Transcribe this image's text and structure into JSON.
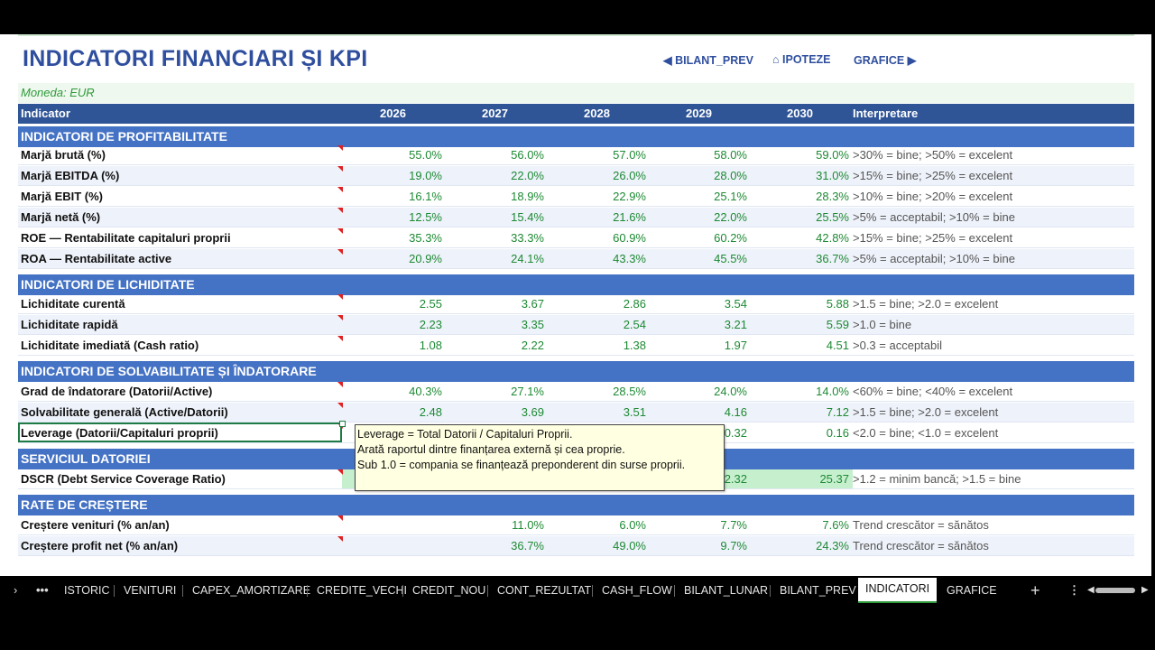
{
  "title": "INDICATORI FINANCIARI ȘI KPI",
  "nav": {
    "bilant_prev": "◀ BILANT_PREV",
    "ipoteze": "⌂ IPOTEZE",
    "grafice": "GRAFICE ▶"
  },
  "moneda": "Moneda: EUR",
  "header": {
    "indicator": "Indicator",
    "years": [
      "2026",
      "2027",
      "2028",
      "2029",
      "2030"
    ],
    "interpretare": "Interpretare"
  },
  "sections": {
    "profitabilitate": {
      "title": "INDICATORI DE PROFITABILITATE",
      "rows": [
        {
          "label": "Marjă brută (%)",
          "values": [
            "55.0%",
            "56.0%",
            "57.0%",
            "58.0%",
            "59.0%"
          ],
          "interp": ">30% = bine; >50% = excelent"
        },
        {
          "label": "Marjă EBITDA (%)",
          "values": [
            "19.0%",
            "22.0%",
            "26.0%",
            "28.0%",
            "31.0%"
          ],
          "interp": ">15% = bine; >25% = excelent"
        },
        {
          "label": "Marjă EBIT (%)",
          "values": [
            "16.1%",
            "18.9%",
            "22.9%",
            "25.1%",
            "28.3%"
          ],
          "interp": ">10% = bine; >20% = excelent"
        },
        {
          "label": "Marjă netă (%)",
          "values": [
            "12.5%",
            "15.4%",
            "21.6%",
            "22.0%",
            "25.5%"
          ],
          "interp": ">5% = acceptabil; >10% = bine"
        },
        {
          "label": "ROE — Rentabilitate capitaluri proprii",
          "values": [
            "35.3%",
            "33.3%",
            "60.9%",
            "60.2%",
            "42.8%"
          ],
          "interp": ">15% = bine; >25% = excelent"
        },
        {
          "label": "ROA — Rentabilitate active",
          "values": [
            "20.9%",
            "24.1%",
            "43.3%",
            "45.5%",
            "36.7%"
          ],
          "interp": ">5% = acceptabil; >10% = bine"
        }
      ]
    },
    "lichiditate": {
      "title": "INDICATORI DE LICHIDITATE",
      "rows": [
        {
          "label": "Lichiditate curentă",
          "values": [
            "2.55",
            "3.67",
            "2.86",
            "3.54",
            "5.88"
          ],
          "interp": ">1.5 = bine; >2.0 = excelent"
        },
        {
          "label": "Lichiditate rapidă",
          "values": [
            "2.23",
            "3.35",
            "2.54",
            "3.21",
            "5.59"
          ],
          "interp": ">1.0 = bine"
        },
        {
          "label": "Lichiditate imediată (Cash ratio)",
          "values": [
            "1.08",
            "2.22",
            "1.38",
            "1.97",
            "4.51"
          ],
          "interp": ">0.3 = acceptabil"
        }
      ]
    },
    "solvabilitate": {
      "title": "INDICATORI DE SOLVABILITATE ȘI ÎNDATORARE",
      "rows": [
        {
          "label": "Grad de îndatorare (Datorii/Active)",
          "values": [
            "40.3%",
            "27.1%",
            "28.5%",
            "24.0%",
            "14.0%"
          ],
          "interp": "<60% = bine; <40% = excelent"
        },
        {
          "label": "Solvabilitate generală (Active/Datorii)",
          "values": [
            "2.48",
            "3.69",
            "3.51",
            "4.16",
            "7.12"
          ],
          "interp": ">1.5 = bine; >2.0 = excelent"
        },
        {
          "label": "Leverage (Datorii/Capitaluri proprii)",
          "values": [
            "",
            "",
            "",
            "0.32",
            "0.16"
          ],
          "interp": "<2.0 = bine; <1.0 = excelent"
        }
      ]
    },
    "serviciu": {
      "title": "SERVICIUL DATORIEI",
      "rows": [
        {
          "label": "DSCR (Debt Service Coverage Ratio)",
          "values": [
            "",
            "",
            "",
            "2.32",
            "25.37"
          ],
          "interp": ">1.2 = minim bancă; >1.5 = bine"
        }
      ]
    },
    "crestere": {
      "title": "RATE DE CREȘTERE",
      "rows": [
        {
          "label": "Creștere venituri (% an/an)",
          "values": [
            "",
            "11.0%",
            "6.0%",
            "7.7%",
            "7.6%"
          ],
          "interp": "Trend crescător = sănătos"
        },
        {
          "label": "Creștere profit net (% an/an)",
          "values": [
            "",
            "36.7%",
            "49.0%",
            "9.7%",
            "24.3%"
          ],
          "interp": "Trend crescător = sănătos"
        }
      ]
    }
  },
  "tooltip": {
    "line1": "Leverage = Total Datorii / Capitaluri Proprii.",
    "line2": "Arată raportul dintre finanțarea externă și cea proprie.",
    "line3": "Sub 1.0 = compania se finanțează preponderent din surse proprii."
  },
  "tabs": [
    "ISTORIC",
    "VENITURI",
    "CAPEX_AMORTIZARE",
    "CREDITE_VECHI",
    "CREDIT_NOU",
    "CONT_REZULTAT",
    "CASH_FLOW",
    "BILANT_LUNAR",
    "BILANT_PREV",
    "INDICATORI",
    "GRAFICE"
  ],
  "active_tab": "INDICATORI",
  "tabbar_icons": {
    "nav": "chevron-right-icon",
    "more": "ellipsis-icon",
    "add": "plus-icon",
    "options": "vertical-ellipsis-icon"
  },
  "colors": {
    "header_bg": "#2f5597",
    "section_bg": "#4472c4",
    "value_green": "#1e8a34",
    "title_blue": "#2f4f9e"
  }
}
